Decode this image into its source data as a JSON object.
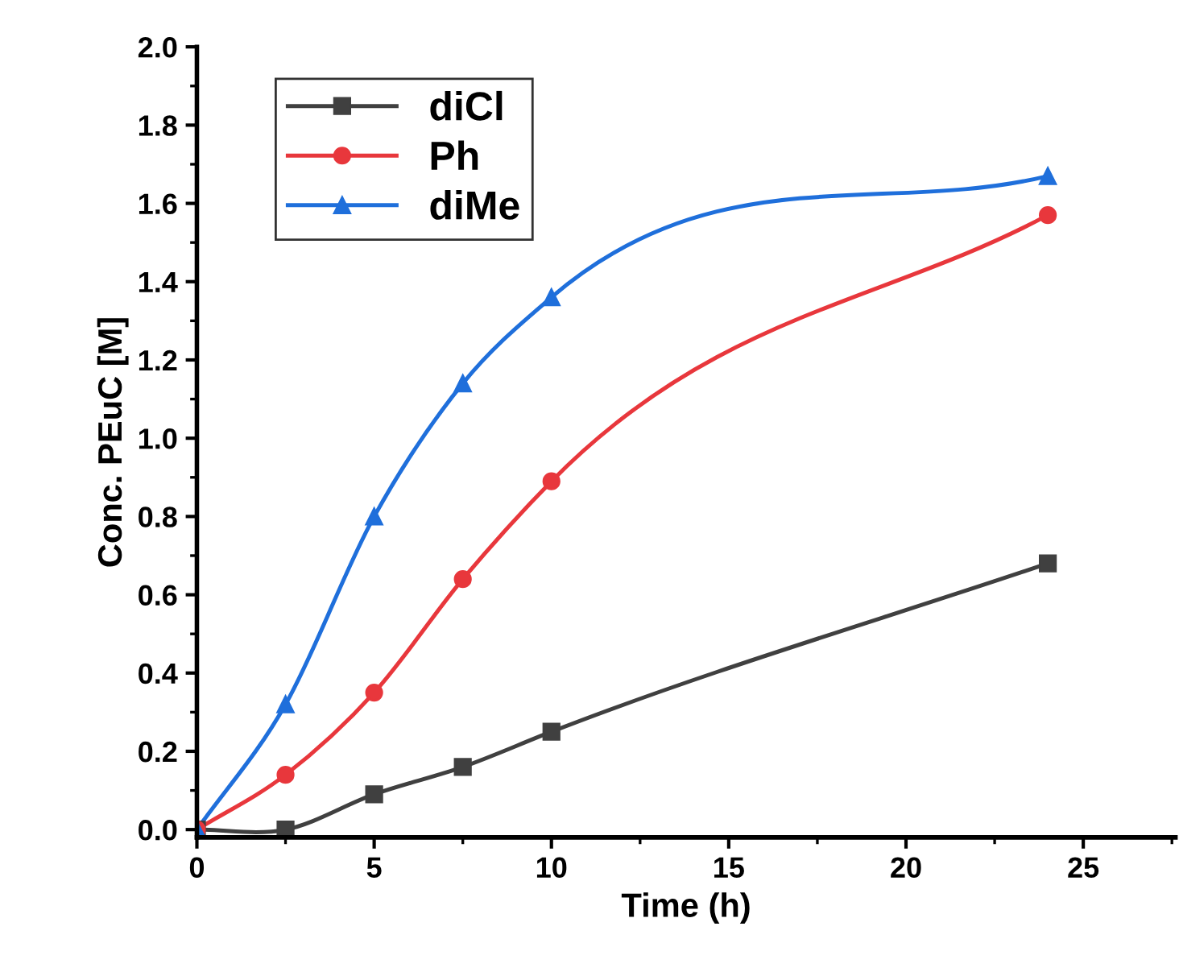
{
  "chart_data": {
    "type": "line",
    "xlabel": "Time (h)",
    "ylabel": "Conc. PEuC [M]",
    "xlim": [
      0,
      27.6
    ],
    "xticks": [
      0,
      5,
      10,
      15,
      20,
      25
    ],
    "ylim": [
      -0.02,
      2.0
    ],
    "yticks": [
      {
        "value": 0,
        "label": "0.0"
      },
      0.2,
      0.4,
      0.6,
      0.8,
      {
        "value": 1,
        "label": "1.0"
      },
      1.2,
      1.4,
      1.6,
      1.8,
      {
        "value": 2,
        "label": "2.0"
      }
    ],
    "x": [
      0,
      2.5,
      5,
      7.5,
      10,
      24
    ],
    "series": [
      {
        "name": "diCl",
        "color": "#404040",
        "marker": "square",
        "values": [
          0,
          0.0,
          0.09,
          0.16,
          0.25,
          0.68
        ]
      },
      {
        "name": "Ph",
        "color": "#e8373c",
        "marker": "circle",
        "values": [
          0,
          0.14,
          0.35,
          0.64,
          0.89,
          1.57
        ]
      },
      {
        "name": "diMe",
        "color": "#1f6fdb",
        "marker": "triangle",
        "values": [
          0,
          0.32,
          0.8,
          1.14,
          1.36,
          1.67
        ]
      }
    ],
    "legend": "top left",
    "grid": false,
    "line_style": "solid"
  }
}
